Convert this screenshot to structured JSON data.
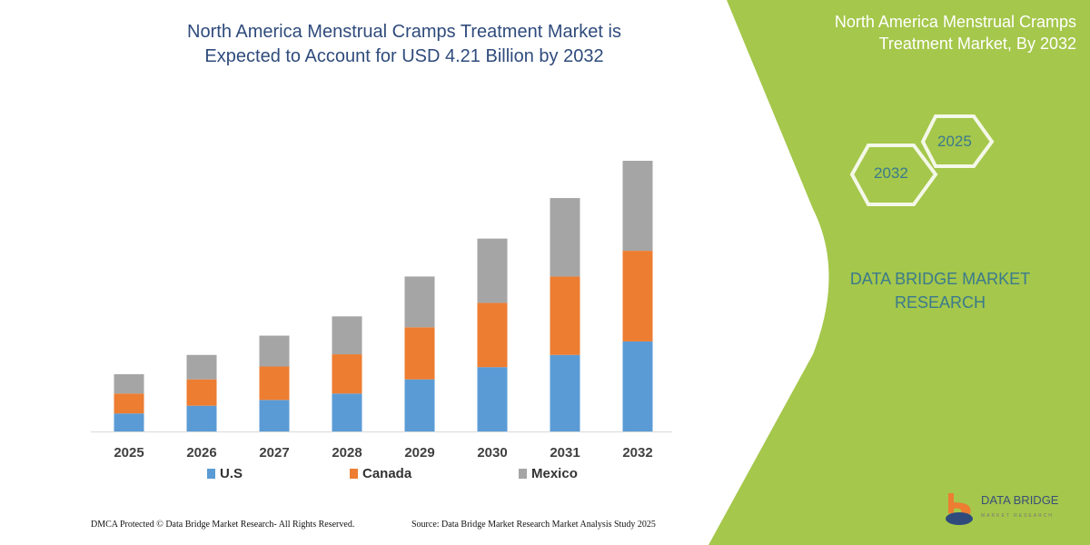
{
  "title_line1": "North America Menstrual Cramps Treatment Market is",
  "title_line2": "Expected to Account for USD  4.21 Billion by 2032",
  "side_panel": {
    "title_line1": "North America Menstrual Cramps",
    "title_line2": "Treatment Market, By 2032",
    "hex_start": "2025",
    "hex_end": "2032",
    "brand_line1": "DATA BRIDGE MARKET",
    "brand_line2": "RESEARCH",
    "logo_text": "DATA BRIDGE",
    "logo_subtext": "MARKET RESEARCH",
    "color": "#a5c74b"
  },
  "footer": {
    "left": "DMCA Protected © Data Bridge Market Research-  All Rights Reserved.",
    "right": "Source: Data Bridge Market Research  Market Analysis Study 2025"
  },
  "chart_data": {
    "type": "bar",
    "stacked": true,
    "categories": [
      "2025",
      "2026",
      "2027",
      "2028",
      "2029",
      "2030",
      "2031",
      "2032"
    ],
    "series": [
      {
        "name": "U.S",
        "color": "#5b9bd5",
        "values": [
          0.28,
          0.4,
          0.49,
          0.59,
          0.81,
          1.0,
          1.19,
          1.4
        ]
      },
      {
        "name": "Canada",
        "color": "#ed7d31",
        "values": [
          0.31,
          0.41,
          0.52,
          0.61,
          0.81,
          1.0,
          1.22,
          1.41
        ]
      },
      {
        "name": "Mexico",
        "color": "#a5a5a5",
        "values": [
          0.3,
          0.38,
          0.48,
          0.59,
          0.79,
          1.0,
          1.22,
          1.4
        ]
      }
    ],
    "ylim": [
      0,
      4.21
    ],
    "grid": false,
    "legend": "bottom",
    "xlabel": "",
    "ylabel": ""
  }
}
